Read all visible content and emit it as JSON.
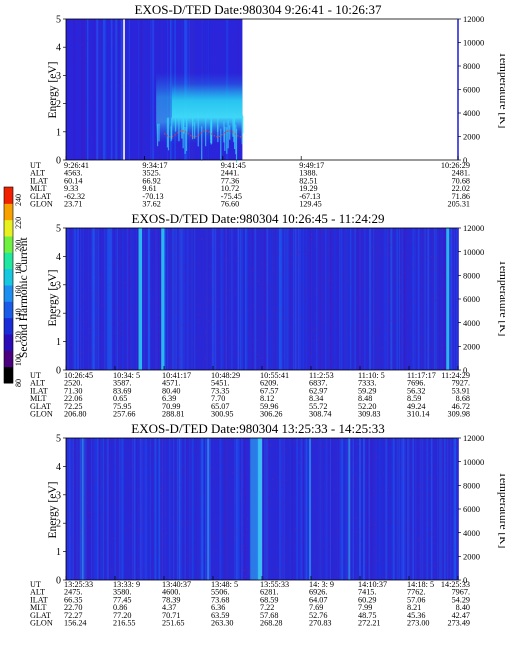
{
  "colorbar": {
    "label": "Second Harmonic Current",
    "ticks": [
      "80",
      "100",
      "120",
      "140",
      "160",
      "180",
      "200",
      "220",
      "240"
    ],
    "colors": [
      "#000000",
      "#4b0080",
      "#2a0cb8",
      "#1a2cd8",
      "#1c5ae8",
      "#1e8ef0",
      "#17c8e0",
      "#20e8a0",
      "#70f040",
      "#e8f020",
      "#f8a000",
      "#f02000"
    ]
  },
  "chart_data": [
    {
      "type": "heatmap",
      "title": "EXOS-D/TED   Date:980304   9:26:41 - 10:26:37",
      "ylabel": "Energy [eV]",
      "y2label": "Temperature [K]",
      "ylim": [
        0,
        5
      ],
      "yticks": [
        "0",
        "1",
        "2",
        "3",
        "4",
        "5"
      ],
      "y2lim": [
        0,
        12000
      ],
      "y2ticks": [
        "0",
        "2000",
        "4000",
        "6000",
        "8000",
        "10000",
        "12000"
      ],
      "data_extent": 0.45,
      "row_labels": [
        "UT",
        "ALT",
        "ILAT",
        "MLT",
        "GLAT",
        "GLON"
      ],
      "columns": [
        {
          "pos": 0.0,
          "values": [
            "9:26:41",
            "4563.",
            "60.14",
            "9.33",
            "-62.32",
            "23.71"
          ]
        },
        {
          "pos": 0.2,
          "values": [
            "9:34:17",
            "3525.",
            "66.92",
            "9.61",
            "-70.13",
            "37.62"
          ]
        },
        {
          "pos": 0.4,
          "values": [
            "9:41:45",
            "2441.",
            "77.36",
            "10.72",
            "-75.45",
            "76.60"
          ]
        },
        {
          "pos": 0.6,
          "values": [
            "9:49:17",
            "1388.",
            "82.51",
            "19.29",
            "-67.13",
            "129.45"
          ]
        },
        {
          "pos": 1.0,
          "values": [
            "10:26:29",
            "2481.",
            "70.68",
            "22.02",
            "71.86",
            "205.31"
          ]
        }
      ]
    },
    {
      "type": "heatmap",
      "title": "EXOS-D/TED   Date:980304   10:26:45 - 11:24:29",
      "ylabel": "Energy [eV]",
      "y2label": "Temperature [K]",
      "ylim": [
        0,
        5
      ],
      "yticks": [
        "0",
        "1",
        "2",
        "3",
        "4",
        "5"
      ],
      "y2lim": [
        0,
        12000
      ],
      "y2ticks": [
        "0",
        "2000",
        "4000",
        "6000",
        "8000",
        "10000",
        "12000"
      ],
      "data_extent": 1.0,
      "row_labels": [
        "UT",
        "ALT",
        "ILAT",
        "MLT",
        "GLAT",
        "GLON"
      ],
      "columns": [
        {
          "pos": 0.0,
          "values": [
            "10:26:45",
            "2520.",
            "71.30",
            "22.06",
            "72.25",
            "206.80"
          ]
        },
        {
          "pos": 0.125,
          "values": [
            "10:34: 5",
            "3587.",
            "83.69",
            "0.65",
            "75.95",
            "257.66"
          ]
        },
        {
          "pos": 0.25,
          "values": [
            "10:41:17",
            "4571.",
            "80.40",
            "6.39",
            "70.99",
            "288.81"
          ]
        },
        {
          "pos": 0.375,
          "values": [
            "10:48:29",
            "5451.",
            "73.35",
            "7.70",
            "65.07",
            "300.95"
          ]
        },
        {
          "pos": 0.5,
          "values": [
            "10:55:41",
            "6209.",
            "67.57",
            "8.12",
            "59.96",
            "306.26"
          ]
        },
        {
          "pos": 0.625,
          "values": [
            "11:2:53",
            "6837.",
            "62.97",
            "8.34",
            "55.72",
            "308.74"
          ]
        },
        {
          "pos": 0.75,
          "values": [
            "11:10: 5",
            "7333.",
            "59.29",
            "8.48",
            "52.20",
            "309.83"
          ]
        },
        {
          "pos": 0.875,
          "values": [
            "11:17:17",
            "7696.",
            "56.32",
            "8.59",
            "49.24",
            "310.14"
          ]
        },
        {
          "pos": 1.0,
          "values": [
            "11:24:29",
            "7927.",
            "53.91",
            "8.68",
            "46.72",
            "309.98"
          ]
        }
      ]
    },
    {
      "type": "heatmap",
      "title": "EXOS-D/TED   Date:980304   13:25:33 - 14:25:33",
      "ylabel": "Energy [eV]",
      "y2label": "Temperature [K]",
      "ylim": [
        0,
        5
      ],
      "yticks": [
        "0",
        "1",
        "2",
        "3",
        "4",
        "5"
      ],
      "y2lim": [
        0,
        12000
      ],
      "y2ticks": [
        "0",
        "2000",
        "4000",
        "6000",
        "8000",
        "10000",
        "12000"
      ],
      "data_extent": 1.0,
      "row_labels": [
        "UT",
        "ALT",
        "ILAT",
        "MLT",
        "GLAT",
        "GLON"
      ],
      "columns": [
        {
          "pos": 0.0,
          "values": [
            "13:25:33",
            "2475.",
            "66.35",
            "22.70",
            "72.27",
            "156.24"
          ]
        },
        {
          "pos": 0.125,
          "values": [
            "13:33: 9",
            "3580.",
            "77.45",
            "0.86",
            "77.20",
            "216.55"
          ]
        },
        {
          "pos": 0.25,
          "values": [
            "13:40:37",
            "4600.",
            "78.39",
            "4.37",
            "70.71",
            "251.65"
          ]
        },
        {
          "pos": 0.375,
          "values": [
            "13:48: 5",
            "5506.",
            "73.68",
            "6.36",
            "63.59",
            "263.30"
          ]
        },
        {
          "pos": 0.5,
          "values": [
            "13:55:33",
            "6281.",
            "68.59",
            "7.22",
            "57.68",
            "268.28"
          ]
        },
        {
          "pos": 0.625,
          "values": [
            "14: 3: 9",
            "6926.",
            "64.07",
            "7.69",
            "52.76",
            "270.83"
          ]
        },
        {
          "pos": 0.75,
          "values": [
            "14:10:37",
            "7415.",
            "60.29",
            "7.99",
            "48.75",
            "272.21"
          ]
        },
        {
          "pos": 0.875,
          "values": [
            "14:18: 5",
            "7762.",
            "57.06",
            "8.21",
            "45.36",
            "273.00"
          ]
        },
        {
          "pos": 1.0,
          "values": [
            "14:25:33",
            "7967.",
            "54.29",
            "8.40",
            "42.47",
            "273.49"
          ]
        }
      ]
    }
  ]
}
